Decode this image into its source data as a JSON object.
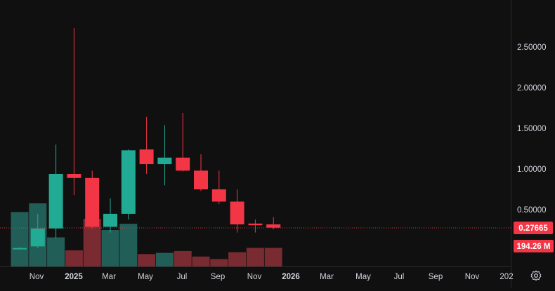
{
  "chart_data": {
    "type": "candlestick",
    "interval": "monthly",
    "price_axis": {
      "ticks": [
        0.5,
        1.0,
        1.5,
        2.0,
        2.5
      ],
      "tick_labels": [
        "0.50000",
        "1.00000",
        "1.50000",
        "2.00000",
        "2.50000"
      ],
      "range": [
        -0.3,
        2.8
      ]
    },
    "time_axis": {
      "labels": [
        "Nov",
        "2025",
        "Mar",
        "May",
        "Jul",
        "Sep",
        "Nov",
        "2026",
        "Mar",
        "May",
        "Jul",
        "Sep",
        "Nov",
        "202"
      ]
    },
    "last_price": {
      "value": 0.27665,
      "label": "0.27665"
    },
    "last_volume": {
      "label": "194.26 M"
    },
    "candles": [
      {
        "month": "2024-09",
        "open": 0.02,
        "high": 0.04,
        "low": 0.01,
        "close": 0.03,
        "volume": 0.88
      },
      {
        "month": "2024-10",
        "open": 0.05,
        "high": 0.45,
        "low": 0.03,
        "close": 0.27,
        "volume": 1.02
      },
      {
        "month": "2024-11",
        "open": 0.27,
        "high": 1.3,
        "low": 0.15,
        "close": 0.94,
        "volume": 0.47
      },
      {
        "month": "2024-12",
        "open": 0.94,
        "high": 2.73,
        "low": 0.68,
        "close": 0.89,
        "volume": 0.26
      },
      {
        "month": "2025-01",
        "open": 0.89,
        "high": 0.98,
        "low": 0.27,
        "close": 0.29,
        "volume": 0.77
      },
      {
        "month": "2025-02",
        "open": 0.29,
        "high": 0.64,
        "low": 0.22,
        "close": 0.45,
        "volume": 0.59
      },
      {
        "month": "2025-03",
        "open": 0.45,
        "high": 1.24,
        "low": 0.38,
        "close": 1.23,
        "volume": 0.69
      },
      {
        "month": "2025-04",
        "open": 1.24,
        "high": 1.64,
        "low": 0.94,
        "close": 1.06,
        "volume": 0.2
      },
      {
        "month": "2025-05",
        "open": 1.06,
        "high": 1.54,
        "low": 0.8,
        "close": 1.14,
        "volume": 0.22
      },
      {
        "month": "2025-06",
        "open": 1.14,
        "high": 1.69,
        "low": 0.97,
        "close": 0.98,
        "volume": 0.25
      },
      {
        "month": "2025-07",
        "open": 0.98,
        "high": 1.18,
        "low": 0.73,
        "close": 0.75,
        "volume": 0.16
      },
      {
        "month": "2025-08",
        "open": 0.75,
        "high": 0.98,
        "low": 0.57,
        "close": 0.6,
        "volume": 0.12
      },
      {
        "month": "2025-09",
        "open": 0.6,
        "high": 0.75,
        "low": 0.22,
        "close": 0.32,
        "volume": 0.23
      },
      {
        "month": "2025-10",
        "open": 0.33,
        "high": 0.38,
        "low": 0.22,
        "close": 0.31,
        "volume": 0.3
      },
      {
        "month": "2025-11",
        "open": 0.32,
        "high": 0.41,
        "low": 0.26,
        "close": 0.28,
        "volume": 0.3
      }
    ],
    "colors": {
      "up": "#22ab94",
      "down": "#f23645",
      "up_volume": "#225e58",
      "down_volume": "#7a2b31",
      "background": "#101010",
      "axis_text": "#d1d4dc"
    }
  }
}
